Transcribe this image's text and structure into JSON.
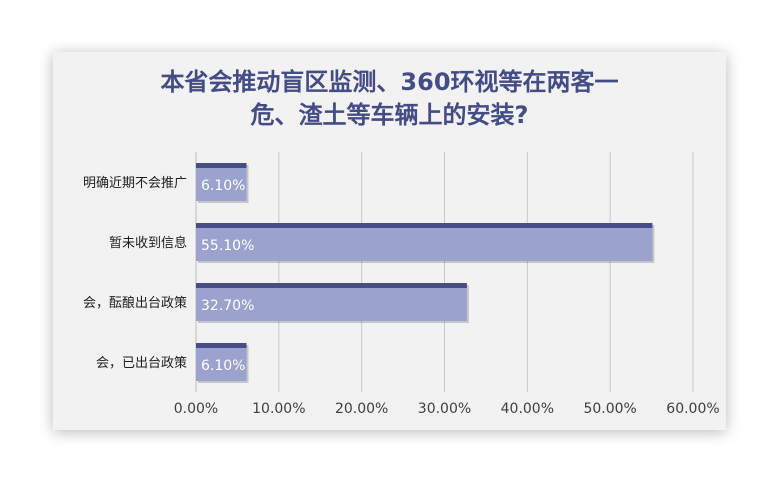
{
  "chart_data": {
    "type": "bar",
    "orientation": "horizontal",
    "title_lines": [
      "本省会推动盲区监测、360环视等在两客一",
      "危、渣土等车辆上的安装?"
    ],
    "categories": [
      "明确近期不会推广",
      "暂未收到信息",
      "会，酝酿出台政策",
      "会，已出台政策"
    ],
    "values": [
      6.1,
      55.1,
      32.7,
      6.1
    ],
    "value_labels": [
      "6.10%",
      "55.10%",
      "32.70%",
      "6.10%"
    ],
    "xlim": [
      0,
      60
    ],
    "x_ticks": [
      "0.00%",
      "10.00%",
      "20.00%",
      "30.00%",
      "40.00%",
      "50.00%",
      "60.00%"
    ],
    "grid": true,
    "colors": {
      "bar": "#9aa2cd",
      "bar_edge": "#474e87",
      "title": "#444c85",
      "grid": "#c8c8c8",
      "background": "#f2f2f2"
    }
  }
}
